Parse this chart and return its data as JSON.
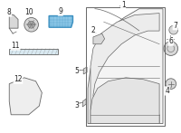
{
  "bg_color": "#ffffff",
  "line_color": "#666666",
  "highlight_color": "#3a8fc0",
  "highlight_fill": "#8dc8e8",
  "part_fill": "#d8d8d8",
  "label_color": "#222222",
  "figsize": [
    2.0,
    1.47
  ],
  "dpi": 100
}
